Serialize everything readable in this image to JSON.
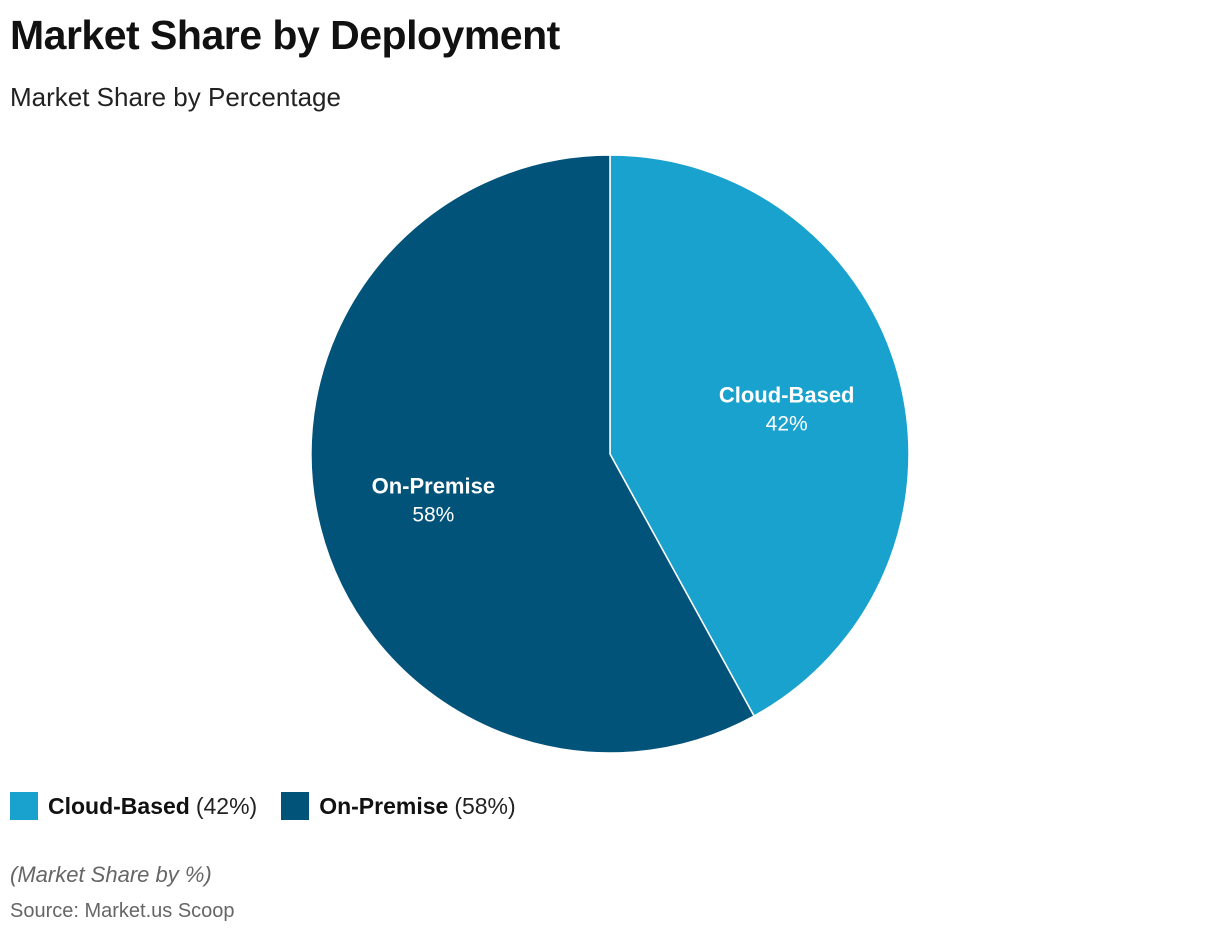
{
  "header": {
    "title": "Market Share by Deployment",
    "subtitle": "Market Share by Percentage"
  },
  "chart_data": {
    "type": "pie",
    "title": "Market Share by Deployment",
    "subtitle": "Market Share by Percentage",
    "start_angle": "12 o'clock, clockwise",
    "legend_position": "bottom-left",
    "slices": [
      {
        "name": "Cloud-Based",
        "value": 42,
        "label": "42%",
        "legend_value": "(42%)",
        "color": "#1aa2cf"
      },
      {
        "name": "On-Premise",
        "value": 58,
        "label": "58%",
        "legend_value": "(58%)",
        "color": "#02537a"
      }
    ]
  },
  "footer": {
    "note": "(Market Share by %)",
    "source": "Source: Market.us Scoop"
  }
}
